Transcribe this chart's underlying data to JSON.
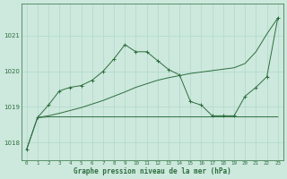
{
  "background_color": "#cde8dd",
  "grid_color": "#b0d9cb",
  "line_color": "#2d6e3e",
  "title": "Graphe pression niveau de la mer (hPa)",
  "ylim_min": 1017.5,
  "ylim_max": 1021.9,
  "yticks": [
    1018,
    1019,
    1020,
    1021
  ],
  "figsize": [
    3.2,
    2.0
  ],
  "dpi": 100,
  "peaked_x": [
    0,
    1,
    2,
    3,
    4,
    5,
    6,
    7,
    8,
    9,
    10,
    11,
    12,
    13,
    14,
    15,
    16,
    17,
    18,
    19,
    20,
    21,
    22,
    23
  ],
  "peaked_y": [
    1017.8,
    1018.7,
    1019.05,
    1019.45,
    1019.55,
    1019.6,
    1019.75,
    1020.0,
    1020.35,
    1020.75,
    1020.55,
    1020.55,
    1020.3,
    1020.05,
    1019.9,
    1019.15,
    1019.05,
    1018.75,
    1018.75,
    1018.75,
    1019.3,
    1019.55,
    1019.85,
    1021.5
  ],
  "flat_x": [
    0,
    1,
    2,
    3,
    4,
    5,
    6,
    7,
    8,
    9,
    10,
    11,
    12,
    13,
    14,
    15,
    16,
    17,
    18,
    19,
    20,
    21,
    22,
    23
  ],
  "flat_y": [
    1017.8,
    1018.7,
    1018.72,
    1018.72,
    1018.72,
    1018.72,
    1018.72,
    1018.72,
    1018.72,
    1018.72,
    1018.72,
    1018.72,
    1018.72,
    1018.72,
    1018.72,
    1018.72,
    1018.72,
    1018.72,
    1018.72,
    1018.72,
    1018.72,
    1018.72,
    1018.72,
    1018.72
  ],
  "rising_x": [
    1,
    2,
    3,
    4,
    5,
    6,
    7,
    8,
    9,
    10,
    11,
    12,
    13,
    14,
    15,
    16,
    17,
    18,
    19,
    20,
    21,
    22,
    23
  ],
  "rising_y": [
    1018.7,
    1018.75,
    1018.82,
    1018.9,
    1018.98,
    1019.08,
    1019.18,
    1019.3,
    1019.42,
    1019.55,
    1019.65,
    1019.75,
    1019.82,
    1019.88,
    1019.94,
    1019.98,
    1020.02,
    1020.06,
    1020.1,
    1020.22,
    1020.55,
    1021.05,
    1021.5
  ]
}
